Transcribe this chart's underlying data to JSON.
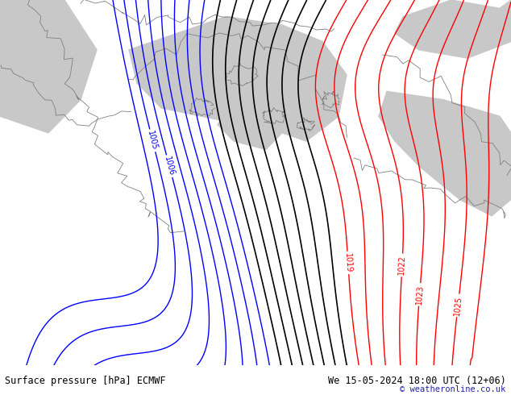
{
  "title_left": "Surface pressure [hPa] ECMWF",
  "title_right": "We 15-05-2024 18:00 UTC (12+06)",
  "copyright": "© weatheronline.co.uk",
  "bg_color": "#c8f0a0",
  "land_color": "#c8f0a0",
  "sea_color": "#c8c8c8",
  "figsize": [
    6.34,
    4.9
  ],
  "dpi": 100,
  "blue_levels": [
    1004,
    1005,
    1006,
    1007,
    1008,
    1009,
    1010,
    1011
  ],
  "black_levels": [
    1012,
    1013,
    1014,
    1015,
    1016,
    1017,
    1018
  ],
  "red_levels": [
    1019,
    1020,
    1021,
    1022,
    1023,
    1024,
    1025,
    1026
  ],
  "blue_label_levels": [
    1005,
    1006
  ],
  "black_label_levels": [],
  "red_label_levels": [
    1019,
    1022,
    1023,
    1025
  ]
}
